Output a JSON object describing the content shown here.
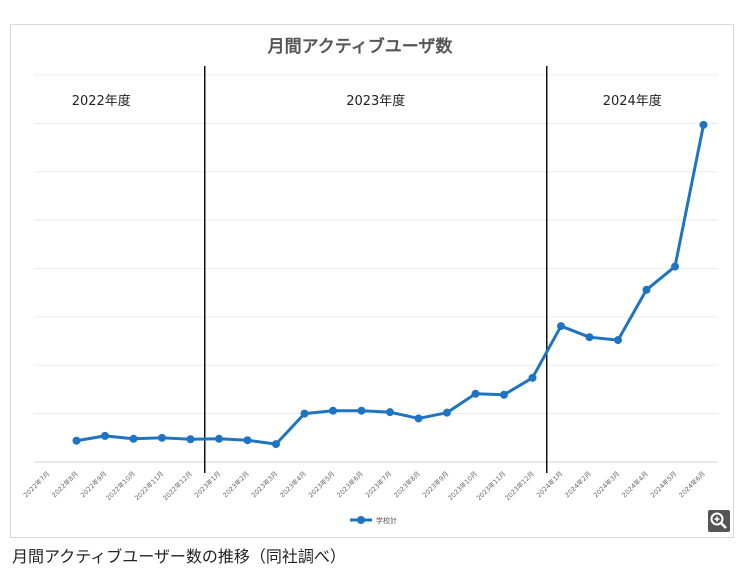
{
  "chart_data": {
    "type": "line",
    "title": "月間アクティブユーザ数",
    "categories": [
      "2022年7月",
      "2022年8月",
      "2022年9月",
      "2022年10月",
      "2022年11月",
      "2022年12月",
      "2023年1月",
      "2023年2月",
      "2023年3月",
      "2023年4月",
      "2023年5月",
      "2023年6月",
      "2023年7月",
      "2023年8月",
      "2023年9月",
      "2023年10月",
      "2023年11月",
      "2023年12月",
      "2024年1月",
      "2024年2月",
      "2024年3月",
      "2024年4月",
      "2024年5月",
      "2024年6月"
    ],
    "series": [
      {
        "name": "学校計",
        "color": "#1f74c2",
        "values": [
          null,
          4.4,
          5.4,
          4.8,
          5.0,
          4.7,
          4.8,
          4.5,
          3.7,
          10.0,
          10.6,
          10.6,
          10.3,
          9.0,
          10.2,
          14.1,
          13.9,
          17.4,
          28.1,
          25.8,
          25.2,
          35.6,
          40.4,
          69.7
        ]
      }
    ],
    "ylim": [
      0,
      80
    ],
    "y_tick_labels_shown": false,
    "grid": true,
    "legend": "bottom-center",
    "periods": [
      {
        "label": "2022年度"
      },
      {
        "label": "2023年度"
      },
      {
        "label": "2024年度"
      }
    ]
  },
  "caption": "月間アクティブユーザー数の推移（同社調べ）",
  "icons": {
    "zoom": "zoom-in-icon"
  }
}
